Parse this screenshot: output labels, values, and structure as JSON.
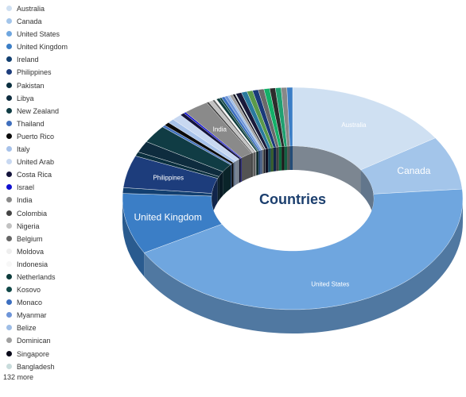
{
  "chart_data": {
    "type": "pie",
    "title": "Countries",
    "categories": [
      "Australia",
      "Canada",
      "United States",
      "United Kingdom",
      "Ireland",
      "Philippines",
      "Pakistan",
      "Libya",
      "New Zealand",
      "Thailand",
      "Puerto Rico",
      "Italy",
      "United Arab",
      "Costa Rica",
      "Israel",
      "India",
      "Colombia",
      "Nigeria",
      "Belgium",
      "Moldova",
      "Indonesia",
      "Netherlands",
      "Kosovo",
      "Monaco",
      "Myanmar",
      "Belize",
      "Dominican",
      "Singapore",
      "Bangladesh"
    ],
    "values": [
      15.2,
      7.5,
      41.5,
      8.5,
      0.8,
      4.5,
      0.6,
      1.6,
      2.5,
      0.3,
      0.5,
      0.6,
      0.9,
      0.4,
      0.2,
      2.3,
      0.2,
      0.4,
      0.2,
      0.1,
      0.1,
      0.3,
      0.2,
      0.3,
      0.3,
      0.2,
      0.3,
      0.2,
      0.1
    ],
    "slice_labels": {
      "Australia": "Australia",
      "Canada": "Canada",
      "United States": "United States",
      "United Kingdom": "United Kingdom",
      "Philippines": "Philippines",
      "India": "India"
    },
    "colors": [
      "#cfe0f2",
      "#a3c5ea",
      "#6fa6df",
      "#3b7ec6",
      "#123f70",
      "#1d3d7c",
      "#0a2f3f",
      "#0e2c3e",
      "#103c44",
      "#3f6fbd",
      "#0a0a0a",
      "#a7c2ea",
      "#c8d8f1",
      "#14143c",
      "#1010d0",
      "#8a8a8a",
      "#444444",
      "#c2c2c2",
      "#666666",
      "#eeeeee",
      "#f7f7f7",
      "#0d3c3c",
      "#114848",
      "#3c6fc0",
      "#6e95d8",
      "#9ebde6",
      "#a0a0a0",
      "#0a0a1a",
      "#c9dcdc"
    ],
    "legend": {
      "position": "left",
      "more_label": "132 more"
    },
    "others": {
      "value": 5.2,
      "colors": [
        "#1a1a3a",
        "#2a7a9e",
        "#5a9a4a",
        "#1a3a7a",
        "#6a6a6a",
        "#14b068",
        "#2c2c2c",
        "#1fa070",
        "#888888",
        "#3b7ec6"
      ]
    }
  }
}
